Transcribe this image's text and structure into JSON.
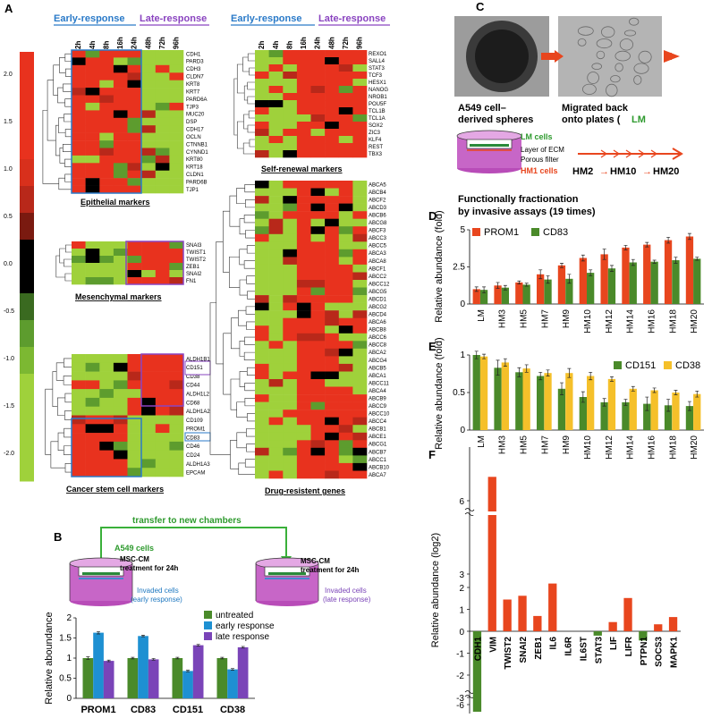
{
  "panels": {
    "A": "A",
    "B": "B",
    "C": "C",
    "D": "D",
    "E": "E",
    "F": "F"
  },
  "heatmap": {
    "time_points": [
      "2h",
      "4h",
      "8h",
      "16h",
      "24h",
      "48h",
      "72h",
      "96h"
    ],
    "early_label": "Early-response",
    "late_label": "Late-response",
    "colorbar_ticks": [
      "2.0",
      "1.5",
      "1.0",
      "0.5",
      "0.0",
      "-0.5",
      "-1.0",
      "-1.5",
      "-2.0"
    ],
    "colors": {
      "hi": "#e8321e",
      "mid_hi": "#b8281a",
      "zero": "#000000",
      "mid_lo": "#5d9c2e",
      "lo": "#9fd13b"
    },
    "epithelial": {
      "title": "Epithelial markers",
      "genes": [
        "CDH1",
        "PARD3",
        "CDH3",
        "CLDN7",
        "KRT8",
        "KRT7",
        "PARD6A",
        "TJP3",
        "MUC20",
        "DSP",
        "CDH17",
        "OCLN",
        "CTNNB1",
        "CYNND1",
        "KRT80",
        "KRT18",
        "CLDN1",
        "PARD6B",
        "TJP1"
      ]
    },
    "mesenchymal": {
      "title": "Mesenchymal markers",
      "genes": [
        "SNAI3",
        "TWIST1",
        "TWIST2",
        "ZEB1",
        "SNAI2",
        "FN1"
      ]
    },
    "cancer_stem": {
      "title": "Cancer stem cell markers",
      "genes": [
        "ALDH1B1",
        "CD151",
        "CD38",
        "CD44",
        "ALDH1L2",
        "CD68",
        "ALDH1A2",
        "CD109",
        "PROM1",
        "CD83",
        "CD46",
        "CD24",
        "ALDH1A3",
        "EPCAM"
      ]
    },
    "self_renewal": {
      "title": "Self-renewal markers",
      "genes": [
        "REXO1",
        "SALL4",
        "STAT3",
        "TCF3",
        "HESX1",
        "NANOG",
        "NROB1",
        "POU5F",
        "TCL1B",
        "TCL1A",
        "SOX2",
        "ZIC3",
        "KLF4",
        "REST",
        "TBX3"
      ]
    },
    "drug": {
      "title": "Drug-resistent genes",
      "genes": [
        "ABCA5",
        "ABCB4",
        "ABCF2",
        "ABCD3",
        "ABCB6",
        "ABCG8",
        "ABCF3",
        "ABCC3",
        "ABCC5",
        "ABCA3",
        "ABCA8",
        "ABCF1",
        "ABCC2",
        "ABCC12",
        "ABCG5",
        "ABCD1",
        "ABCG2",
        "ABCD4",
        "ABCA6",
        "ABCB8",
        "ABCC6",
        "ABCC8",
        "ABCA2",
        "ABCG4",
        "ABCB5",
        "ABCA1",
        "ABCC11",
        "ABCA4",
        "ABCB9",
        "ABCC9",
        "ABCC10",
        "ABCC4",
        "ABCB1",
        "ABCE1",
        "ABCG1",
        "ABCB7",
        "ABCC1",
        "ABCB10",
        "ABCA7"
      ]
    }
  },
  "panel_b": {
    "a549": "A549 cells",
    "transfer": "transfer to new chambers",
    "msc1": "MSC-CM",
    "msc1b": "treatment for 24h",
    "msc2": "MSC-CM",
    "msc2b": "treatment for 24h",
    "inv1": "Invaded cells",
    "inv1b": "(early response)",
    "inv2": "Invaded cells",
    "inv2b": "(late response)"
  },
  "panel_c": {
    "cap1a": "A549 cell–",
    "cap1b": "derived spheres",
    "cap2a": "Migrated back",
    "cap2b": "onto plates (",
    "cap2c": "LM",
    "lm_cells": "LM cells",
    "ecm": "Layer of ECM",
    "filter": "Porous filter",
    "hm1": "HM1 cells",
    "hm2": "HM2",
    "hm10": "HM10",
    "hm20": "HM20",
    "func1": "Functionally fractionation",
    "func2": "by invasive assays (19 times)"
  },
  "chart_data": [
    {
      "panel": "B",
      "type": "bar",
      "categories": [
        "PROM1",
        "CD83",
        "CD151",
        "CD38"
      ],
      "ylabel": "Relative aboundance",
      "ylim": [
        0,
        2
      ],
      "yticks": [
        "0",
        "0.5",
        "1",
        "1.5",
        "2"
      ],
      "legend": "top-right",
      "series": [
        {
          "name": "untreated",
          "color": "#4a8a2a",
          "values": [
            1.0,
            1.0,
            1.0,
            1.0
          ],
          "err": [
            0.03,
            0.02,
            0.02,
            0.02
          ]
        },
        {
          "name": "early response",
          "color": "#1e90d2",
          "values": [
            1.63,
            1.55,
            0.68,
            0.72
          ],
          "err": [
            0.03,
            0.02,
            0.02,
            0.02
          ]
        },
        {
          "name": "late response",
          "color": "#7a44b8",
          "values": [
            0.93,
            0.97,
            1.32,
            1.27
          ],
          "err": [
            0.02,
            0.02,
            0.02,
            0.02
          ]
        }
      ]
    },
    {
      "panel": "D",
      "type": "bar",
      "categories": [
        "LM",
        "HM3",
        "HM5",
        "HM7",
        "HM9",
        "HM10",
        "HM12",
        "HM14",
        "HM16",
        "HM18",
        "HM20"
      ],
      "ylabel": "Relative abundance (fold)",
      "ylim": [
        0,
        5
      ],
      "yticks": [
        "0",
        "2.5",
        "5"
      ],
      "legend": "top-left",
      "series": [
        {
          "name": "PROM1",
          "color": "#e8461e",
          "values": [
            1.0,
            1.25,
            1.45,
            2.0,
            2.6,
            3.1,
            3.35,
            3.8,
            4.0,
            4.3,
            4.55
          ],
          "err": [
            0.15,
            0.2,
            0.1,
            0.3,
            0.15,
            0.2,
            0.35,
            0.15,
            0.15,
            0.2,
            0.2
          ]
        },
        {
          "name": "CD83",
          "color": "#4a8a2a",
          "values": [
            0.95,
            1.1,
            1.3,
            1.65,
            1.7,
            2.1,
            2.4,
            2.8,
            2.85,
            2.95,
            3.05
          ],
          "err": [
            0.2,
            0.15,
            0.1,
            0.25,
            0.3,
            0.2,
            0.2,
            0.2,
            0.1,
            0.2,
            0.1
          ]
        }
      ]
    },
    {
      "panel": "E",
      "type": "bar",
      "categories": [
        "LM",
        "HM3",
        "HM5",
        "HM7",
        "HM9",
        "HM10",
        "HM12",
        "HM14",
        "HM16",
        "HM18",
        "HM20"
      ],
      "ylabel": "Relative abundance (fold)",
      "ylim": [
        0,
        1
      ],
      "yticks": [
        "0",
        "0.5",
        "1"
      ],
      "legend": "top-right",
      "series": [
        {
          "name": "CD151",
          "color": "#4a8a2a",
          "values": [
            1.0,
            0.83,
            0.77,
            0.72,
            0.55,
            0.44,
            0.37,
            0.37,
            0.35,
            0.33,
            0.32
          ],
          "err": [
            0.05,
            0.1,
            0.06,
            0.05,
            0.08,
            0.07,
            0.05,
            0.04,
            0.09,
            0.08,
            0.06
          ]
        },
        {
          "name": "CD38",
          "color": "#f5c02a",
          "values": [
            0.98,
            0.9,
            0.82,
            0.76,
            0.76,
            0.72,
            0.68,
            0.55,
            0.53,
            0.5,
            0.48
          ],
          "err": [
            0.03,
            0.05,
            0.05,
            0.04,
            0.06,
            0.05,
            0.03,
            0.03,
            0.03,
            0.03,
            0.04
          ]
        }
      ]
    },
    {
      "panel": "F",
      "type": "bar",
      "categories": [
        "CDH1",
        "VIM",
        "TWIST2",
        "SNAI2",
        "ZEB1",
        "IL6",
        "IL6R",
        "IL6ST",
        "STAT3",
        "LIF",
        "LIFR",
        "PTPN1",
        "SOCS3",
        "MAPK1"
      ],
      "ylabel": "Relative abundance (log2)",
      "ylim": [
        -6,
        7
      ],
      "yticks": [
        "-6",
        "-3",
        "-2",
        "-1",
        "0",
        "1",
        "2",
        "3",
        "6"
      ],
      "values": [
        -6.3,
        7.1,
        1.45,
        1.62,
        0.7,
        2.18,
        0,
        0,
        -0.2,
        0.42,
        1.52,
        -0.42,
        0.32,
        0.65
      ],
      "colors": [
        "#4a8a2a",
        "#e8461e",
        "#e8461e",
        "#e8461e",
        "#e8461e",
        "#e8461e",
        "#e8461e",
        "#e8461e",
        "#4a8a2a",
        "#e8461e",
        "#e8461e",
        "#4a8a2a",
        "#e8461e",
        "#e8461e"
      ]
    }
  ]
}
